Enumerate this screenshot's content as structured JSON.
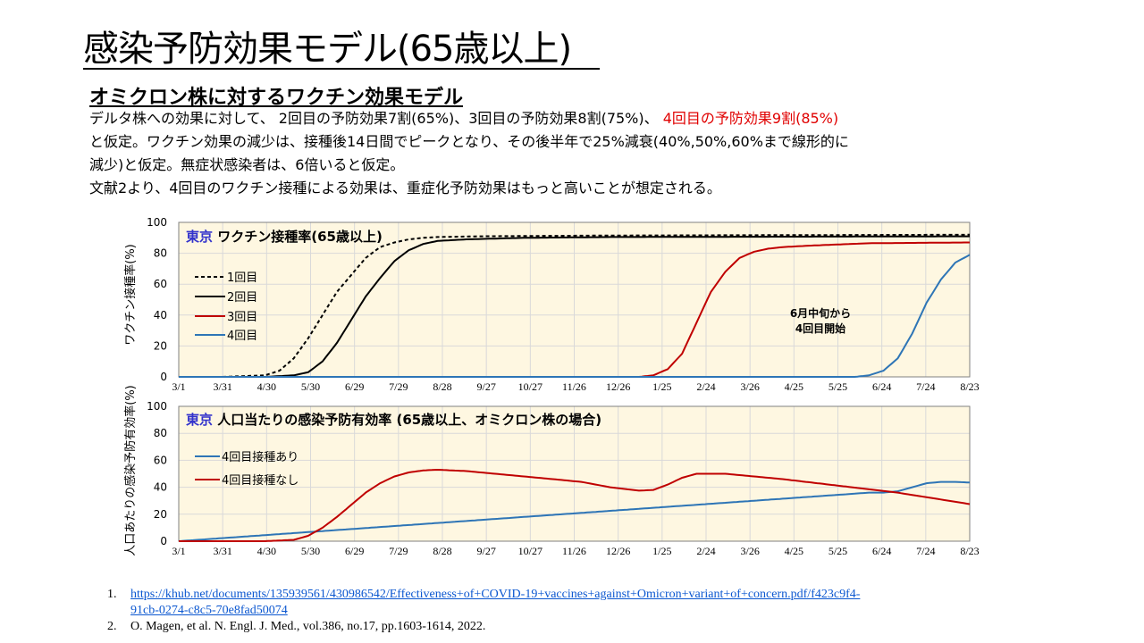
{
  "slide": {
    "title": "感染予防効果モデル(65歳以上)",
    "subtitle": "オミクロン株に対するワクチン効果モデル",
    "line1_a": "デルタ株への効果に対して、 2回目の予防効果7割(65%)、3回目の予防効果8割(75%)、",
    "line1_b": " 4回目の予防効果9割(85%)",
    "line2": "と仮定。ワクチン効果の減少は、接種後14日間でピークとなり、その後半年で25%減衰(40%,50%,60%まで線形的に",
    "line3": "減少)と仮定。無症状感染者は、6倍いると仮定。",
    "line4": "文献2より、4回目のワクチン接種による効果は、重症化予防効果はもっと高いことが想定される。"
  },
  "references": [
    {
      "num": "1.",
      "text": "https://khub.net/documents/135939561/430986542/Effectiveness+of+COVID-19+vaccines+against+Omicron+variant+of+concern.pdf/f423c9f4-",
      "text2": "91cb-0274-c8c5-70e8fad50074"
    },
    {
      "num": "2.",
      "text": "O. Magen, et al. N. Engl. J. Med., vol.386, no.17, pp.1603-1614, 2022."
    }
  ],
  "colors": {
    "plot_bg": "#fef7e1",
    "grid": "#d9d9d9",
    "dose1": "#000000",
    "dose2": "#000000",
    "dose3": "#c00000",
    "dose4": "#2e75b6",
    "tokyo": "#3333cc"
  },
  "chart_data": [
    {
      "type": "line",
      "title_prefix": "東京",
      "title": "ワクチン接種率(65歳以上)",
      "ylabel": "ワクチン接種率(%)",
      "xlabel": "",
      "ylim": [
        0,
        100
      ],
      "yticks": [
        0,
        20,
        40,
        60,
        80,
        100
      ],
      "x_ticks": [
        "3/1",
        "3/31",
        "4/30",
        "5/30",
        "6/29",
        "7/29",
        "8/28",
        "9/27",
        "10/27",
        "11/26",
        "12/26",
        "1/25",
        "2/24",
        "3/26",
        "4/25",
        "5/25",
        "6/24",
        "7/24",
        "8/23"
      ],
      "x_day_range": [
        0,
        550
      ],
      "annotation": "6月中旬から\n4回目開始",
      "legend": "left",
      "grid": true,
      "series": [
        {
          "name": "1回目",
          "style": "dashed",
          "x": [
            0,
            30,
            60,
            70,
            80,
            90,
            100,
            110,
            120,
            130,
            140,
            150,
            160,
            170,
            180,
            210,
            300,
            550
          ],
          "y": [
            0,
            0,
            1,
            4,
            12,
            25,
            40,
            55,
            66,
            77,
            84,
            87,
            89,
            90,
            90.5,
            91,
            91.5,
            92
          ]
        },
        {
          "name": "2回目",
          "style": "solid",
          "x": [
            0,
            60,
            80,
            90,
            100,
            110,
            120,
            130,
            140,
            150,
            160,
            170,
            180,
            200,
            240,
            300,
            550
          ],
          "y": [
            0,
            0,
            1,
            3,
            10,
            22,
            37,
            52,
            64,
            75,
            82,
            86,
            88,
            89,
            90,
            90.5,
            91
          ]
        },
        {
          "name": "3回目",
          "style": "solid",
          "x": [
            0,
            300,
            320,
            330,
            340,
            350,
            360,
            370,
            380,
            390,
            400,
            410,
            420,
            440,
            480,
            550
          ],
          "y": [
            0,
            0,
            0,
            1,
            5,
            15,
            35,
            55,
            68,
            77,
            81,
            83,
            84,
            85,
            86.5,
            87
          ]
        },
        {
          "name": "4回目",
          "style": "solid",
          "x": [
            0,
            470,
            480,
            490,
            500,
            510,
            520,
            530,
            540,
            550
          ],
          "y": [
            0,
            0,
            1,
            4,
            12,
            28,
            48,
            63,
            74,
            79
          ]
        }
      ]
    },
    {
      "type": "line",
      "title_prefix": "東京",
      "title": "人口当たりの感染予防有効率 (65歳以上、オミクロン株の場合)",
      "ylabel": "人口あたりの感染予防有効率(%)",
      "xlabel": "",
      "ylim": [
        0,
        100
      ],
      "yticks": [
        0,
        20,
        40,
        60,
        80,
        100
      ],
      "x_ticks": [
        "3/1",
        "3/31",
        "4/30",
        "5/30",
        "6/29",
        "7/29",
        "8/28",
        "9/27",
        "10/27",
        "11/26",
        "12/26",
        "1/25",
        "2/24",
        "3/26",
        "4/25",
        "5/25",
        "6/24",
        "7/24",
        "8/23"
      ],
      "x_day_range": [
        0,
        550
      ],
      "legend": "left",
      "grid": true,
      "series": [
        {
          "name": "4回目接種あり",
          "x": [
            0,
            480,
            490,
            500,
            510,
            520,
            530,
            540,
            550
          ],
          "y": [
            0,
            36,
            36,
            37,
            40,
            43,
            44,
            44,
            43.5
          ]
        },
        {
          "name": "4回目接種なし",
          "x": [
            0,
            60,
            70,
            80,
            90,
            100,
            110,
            120,
            130,
            140,
            150,
            160,
            170,
            180,
            200,
            240,
            280,
            300,
            320,
            330,
            340,
            350,
            360,
            380,
            420,
            460,
            500,
            550
          ],
          "y": [
            0,
            0,
            0.5,
            1,
            4,
            10,
            18,
            27,
            36,
            43,
            48,
            51,
            52.5,
            53,
            52,
            48,
            44,
            40,
            37.5,
            38,
            42,
            47,
            50,
            50,
            46,
            41,
            36,
            27.5
          ]
        }
      ]
    }
  ]
}
